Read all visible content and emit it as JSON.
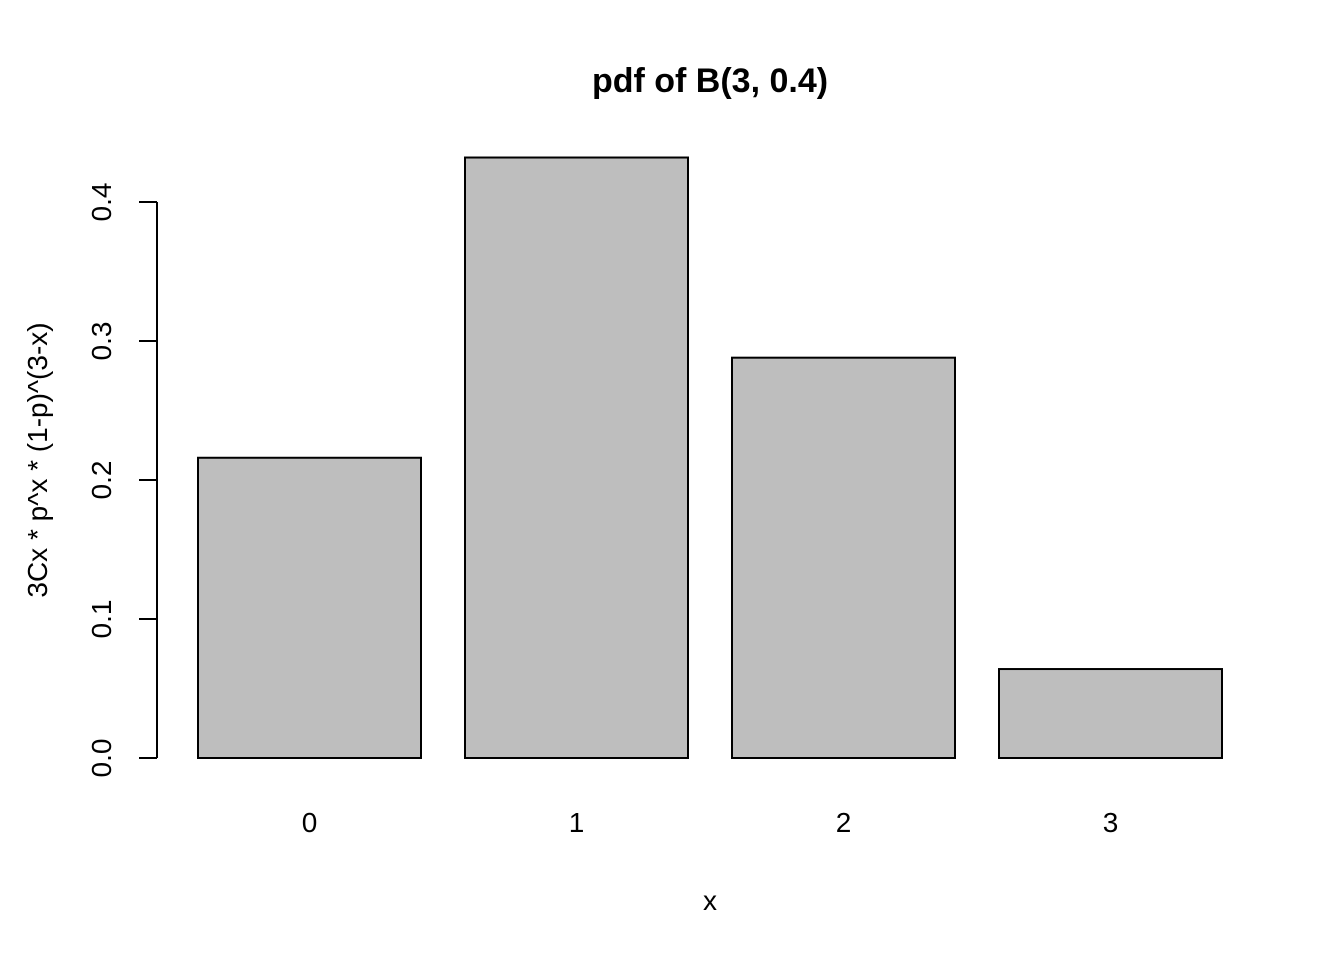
{
  "chart_data": {
    "type": "bar",
    "title": "pdf of B(3, 0.4)",
    "xlabel": "x",
    "ylabel": "3Cx * p^x * (1-p)^(3-x)",
    "categories": [
      "0",
      "1",
      "2",
      "3"
    ],
    "values": [
      0.216,
      0.432,
      0.288,
      0.064
    ],
    "ylim": [
      0,
      0.4
    ],
    "yticks": [
      "0.0",
      "0.1",
      "0.2",
      "0.3",
      "0.4"
    ],
    "bar_color": "#bebebe",
    "grid": false
  }
}
